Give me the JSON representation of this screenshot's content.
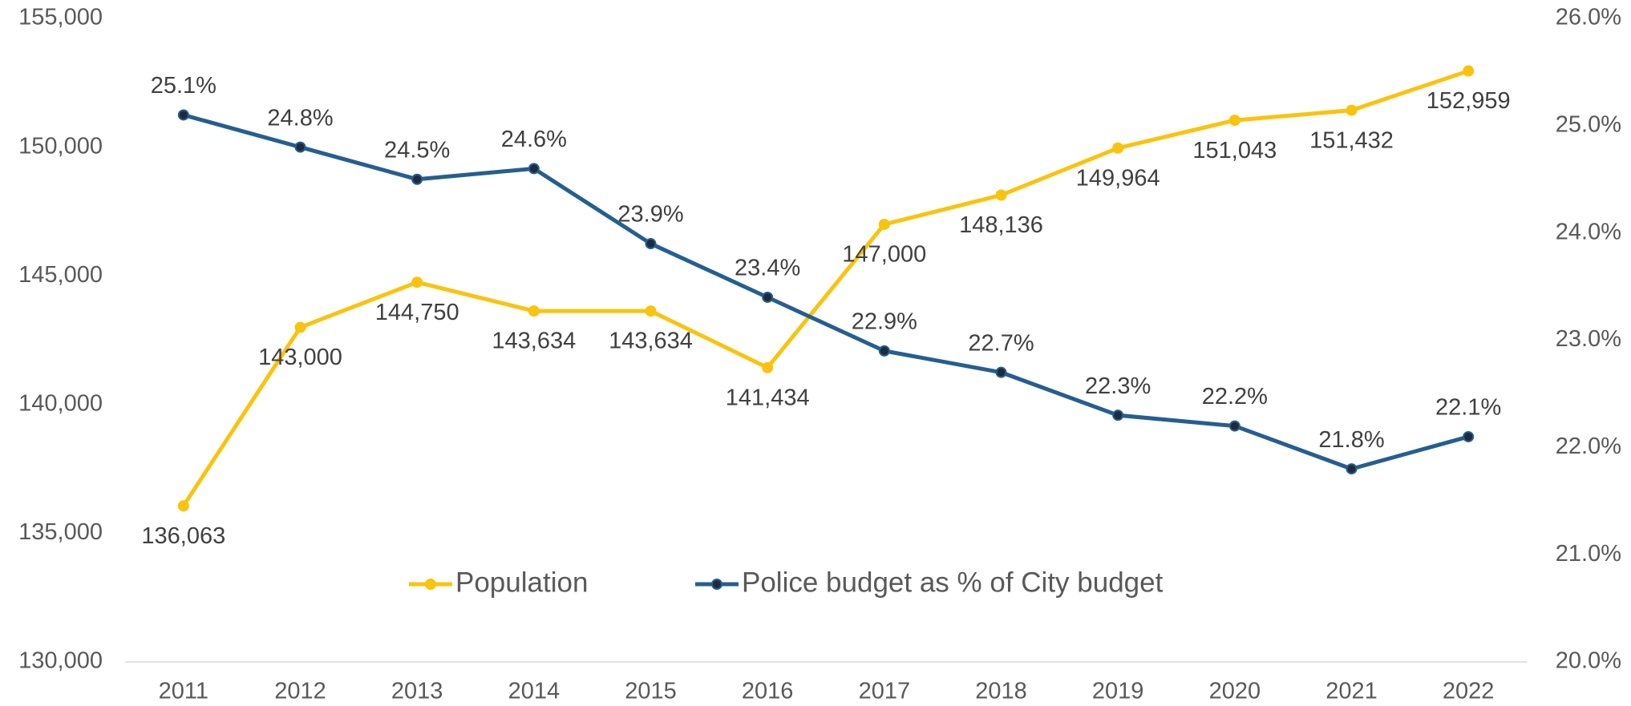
{
  "chart_data": {
    "type": "line",
    "categories": [
      "2011",
      "2012",
      "2013",
      "2014",
      "2015",
      "2016",
      "2017",
      "2018",
      "2019",
      "2020",
      "2021",
      "2022"
    ],
    "series": [
      {
        "name": "Population",
        "color": "#fac30d",
        "axis": "y",
        "values": [
          136063,
          143000,
          144750,
          143634,
          143634,
          141434,
          147000,
          148136,
          149964,
          151043,
          151432,
          152959
        ],
        "value_labels": [
          "136,063",
          "143,000",
          "144,750",
          "143,634",
          "143,634",
          "141,434",
          "147,000",
          "148,136",
          "149,964",
          "151,043",
          "151,432",
          "152,959"
        ]
      },
      {
        "name": "Police budget as % of City budget",
        "color": "#255e91",
        "axis": "y2",
        "values": [
          25.1,
          24.8,
          24.5,
          24.6,
          23.9,
          23.4,
          22.9,
          22.7,
          22.3,
          22.2,
          21.8,
          22.1
        ],
        "value_labels": [
          "25.1%",
          "24.8%",
          "24.5%",
          "24.6%",
          "23.9%",
          "23.4%",
          "22.9%",
          "22.7%",
          "22.3%",
          "22.2%",
          "21.8%",
          "22.1%"
        ]
      }
    ],
    "ylim": [
      130000,
      155000
    ],
    "yticks": [
      {
        "value": 130000,
        "label": "130,000"
      },
      {
        "value": 135000,
        "label": "135,000"
      },
      {
        "value": 140000,
        "label": "140,000"
      },
      {
        "value": 145000,
        "label": "145,000"
      },
      {
        "value": 150000,
        "label": "150,000"
      },
      {
        "value": 155000,
        "label": "155,000"
      }
    ],
    "y2lim": [
      20,
      26
    ],
    "y2ticks": [
      {
        "value": 20,
        "label": "20.0%"
      },
      {
        "value": 21,
        "label": "21.0%"
      },
      {
        "value": 22,
        "label": "22.0%"
      },
      {
        "value": 23,
        "label": "23.0%"
      },
      {
        "value": 24,
        "label": "24.0%"
      },
      {
        "value": 25,
        "label": "25.0%"
      },
      {
        "value": 26,
        "label": "26.0%"
      }
    ],
    "grid": false,
    "legend": "bottom"
  }
}
